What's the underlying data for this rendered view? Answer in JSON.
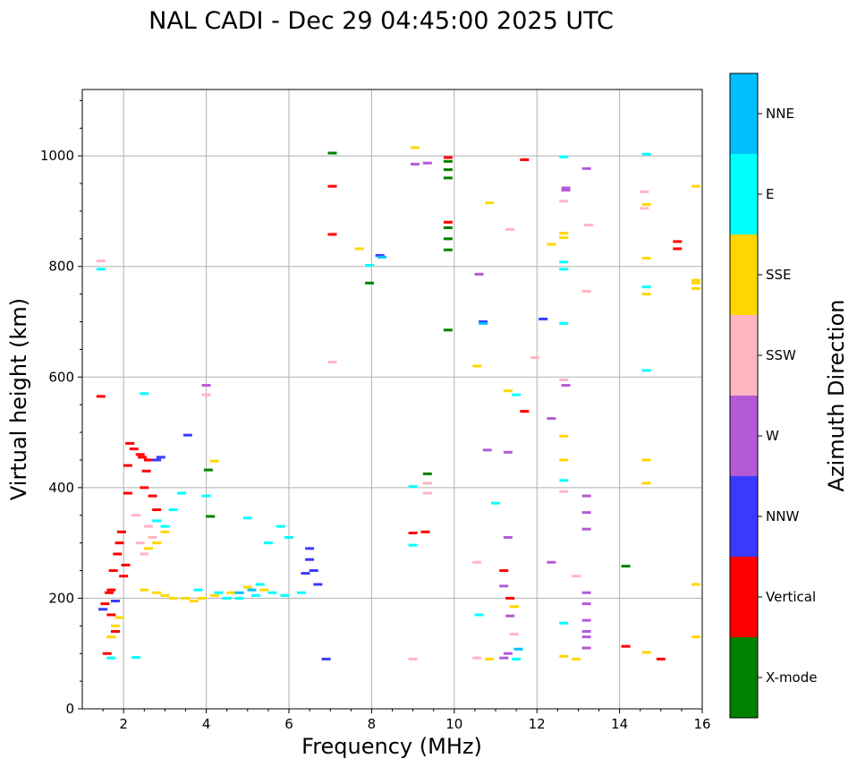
{
  "chart_data": {
    "type": "scatter",
    "title": "NAL CADI - Dec 29 04:45:00 2025 UTC",
    "xlabel": "Frequency (MHz)",
    "ylabel": "Virtual height (km)",
    "xlim": [
      1,
      16
    ],
    "ylim": [
      0,
      1120
    ],
    "xticks": [
      2,
      4,
      6,
      8,
      10,
      12,
      14,
      16
    ],
    "yticks": [
      0,
      200,
      400,
      600,
      800,
      1000
    ],
    "grid": true,
    "colorbar": {
      "label": "Azimuth Direction",
      "categories": [
        {
          "name": "X-mode",
          "color": "#008000"
        },
        {
          "name": "Vertical",
          "color": "#ff0000"
        },
        {
          "name": "NNW",
          "color": "#3a3aff"
        },
        {
          "name": "W",
          "color": "#b45ad6"
        },
        {
          "name": "SSW",
          "color": "#ffb6c1"
        },
        {
          "name": "SSE",
          "color": "#ffd700"
        },
        {
          "name": "E",
          "color": "#00ffff"
        },
        {
          "name": "NNE",
          "color": "#00bfff"
        }
      ]
    },
    "series": [
      {
        "name": "X-mode",
        "points": [
          [
            7.05,
            1005
          ],
          [
            9.35,
            425
          ],
          [
            4.05,
            432
          ],
          [
            4.1,
            348
          ],
          [
            7.95,
            770
          ],
          [
            9.85,
            685
          ],
          [
            14.15,
            258
          ],
          [
            9.85,
            990
          ],
          [
            9.85,
            975
          ],
          [
            9.85,
            960
          ],
          [
            9.85,
            870
          ],
          [
            9.85,
            850
          ],
          [
            9.85,
            830
          ]
        ]
      },
      {
        "name": "Vertical",
        "points": [
          [
            1.45,
            565
          ],
          [
            7.05,
            945
          ],
          [
            7.05,
            858
          ],
          [
            9.0,
            318
          ],
          [
            9.3,
            320
          ],
          [
            11.2,
            250
          ],
          [
            11.35,
            200
          ],
          [
            11.7,
            993
          ],
          [
            11.7,
            538
          ],
          [
            14.15,
            113
          ],
          [
            15.0,
            90
          ],
          [
            15.4,
            845
          ],
          [
            15.4,
            832
          ],
          [
            9.85,
            997
          ],
          [
            9.85,
            880
          ],
          [
            1.55,
            190
          ],
          [
            1.65,
            210
          ],
          [
            1.7,
            170
          ],
          [
            1.75,
            250
          ],
          [
            1.85,
            280
          ],
          [
            1.9,
            300
          ],
          [
            1.95,
            320
          ],
          [
            2.1,
            440
          ],
          [
            2.15,
            480
          ],
          [
            2.25,
            470
          ],
          [
            2.4,
            460
          ],
          [
            2.45,
            455
          ],
          [
            2.5,
            400
          ],
          [
            2.55,
            430
          ],
          [
            2.6,
            450
          ],
          [
            2.7,
            385
          ],
          [
            2.8,
            360
          ],
          [
            2.1,
            390
          ],
          [
            2.05,
            260
          ],
          [
            2.0,
            240
          ],
          [
            1.8,
            140
          ],
          [
            1.7,
            215
          ],
          [
            1.6,
            100
          ]
        ]
      },
      {
        "name": "NNW",
        "points": [
          [
            6.5,
            290
          ],
          [
            6.5,
            270
          ],
          [
            6.6,
            250
          ],
          [
            6.4,
            245
          ],
          [
            6.7,
            225
          ],
          [
            8.2,
            820
          ],
          [
            10.7,
            700
          ],
          [
            12.15,
            705
          ],
          [
            6.9,
            90
          ],
          [
            3.55,
            495
          ],
          [
            2.8,
            450
          ],
          [
            2.9,
            455
          ],
          [
            1.8,
            195
          ],
          [
            1.5,
            180
          ]
        ]
      },
      {
        "name": "W",
        "points": [
          [
            4.0,
            585
          ],
          [
            9.05,
            985
          ],
          [
            9.35,
            987
          ],
          [
            10.6,
            786
          ],
          [
            10.8,
            468
          ],
          [
            11.3,
            464
          ],
          [
            11.3,
            310
          ],
          [
            11.2,
            222
          ],
          [
            11.35,
            168
          ],
          [
            12.35,
            525
          ],
          [
            12.35,
            265
          ],
          [
            12.7,
            942
          ],
          [
            12.7,
            938
          ],
          [
            12.7,
            585
          ],
          [
            13.2,
            977
          ],
          [
            13.2,
            385
          ],
          [
            13.2,
            355
          ],
          [
            13.2,
            325
          ],
          [
            13.2,
            210
          ],
          [
            13.2,
            190
          ],
          [
            13.2,
            160
          ],
          [
            13.2,
            140
          ],
          [
            13.2,
            130
          ],
          [
            13.2,
            110
          ],
          [
            11.3,
            100
          ],
          [
            11.2,
            92
          ]
        ]
      },
      {
        "name": "SSW",
        "points": [
          [
            1.45,
            810
          ],
          [
            7.05,
            627
          ],
          [
            4.0,
            568
          ],
          [
            9.35,
            408
          ],
          [
            9.35,
            390
          ],
          [
            9.0,
            90
          ],
          [
            10.55,
            265
          ],
          [
            10.55,
            92
          ],
          [
            11.35,
            867
          ],
          [
            11.95,
            635
          ],
          [
            12.65,
            918
          ],
          [
            12.65,
            860
          ],
          [
            12.65,
            595
          ],
          [
            12.65,
            393
          ],
          [
            12.95,
            240
          ],
          [
            13.25,
            875
          ],
          [
            13.2,
            755
          ],
          [
            14.6,
            935
          ],
          [
            14.6,
            905
          ],
          [
            11.45,
            135
          ],
          [
            2.4,
            300
          ],
          [
            2.5,
            280
          ],
          [
            2.6,
            330
          ],
          [
            2.7,
            310
          ],
          [
            2.3,
            350
          ],
          [
            2.8,
            340
          ]
        ]
      },
      {
        "name": "SSE",
        "points": [
          [
            9.05,
            1015
          ],
          [
            7.7,
            832
          ],
          [
            10.55,
            620
          ],
          [
            10.85,
            915
          ],
          [
            11.3,
            575
          ],
          [
            11.45,
            185
          ],
          [
            10.85,
            90
          ],
          [
            12.35,
            840
          ],
          [
            12.65,
            860
          ],
          [
            12.65,
            852
          ],
          [
            12.65,
            493
          ],
          [
            12.65,
            450
          ],
          [
            12.65,
            95
          ],
          [
            12.95,
            90
          ],
          [
            14.65,
            912
          ],
          [
            14.65,
            815
          ],
          [
            14.65,
            750
          ],
          [
            14.65,
            450
          ],
          [
            14.65,
            408
          ],
          [
            14.65,
            102
          ],
          [
            15.85,
            945
          ],
          [
            15.85,
            775
          ],
          [
            15.85,
            770
          ],
          [
            15.85,
            760
          ],
          [
            15.85,
            225
          ],
          [
            15.85,
            130
          ],
          [
            4.2,
            448
          ],
          [
            2.5,
            215
          ],
          [
            2.8,
            210
          ],
          [
            3.0,
            205
          ],
          [
            3.2,
            200
          ],
          [
            3.5,
            200
          ],
          [
            3.7,
            195
          ],
          [
            3.9,
            200
          ],
          [
            4.2,
            205
          ],
          [
            4.6,
            210
          ],
          [
            5.0,
            220
          ],
          [
            5.4,
            215
          ],
          [
            1.7,
            130
          ],
          [
            1.8,
            150
          ],
          [
            1.9,
            165
          ],
          [
            2.6,
            290
          ],
          [
            2.8,
            300
          ],
          [
            3.0,
            320
          ]
        ]
      },
      {
        "name": "E",
        "points": [
          [
            1.45,
            795
          ],
          [
            4.0,
            385
          ],
          [
            4.3,
            210
          ],
          [
            4.8,
            200
          ],
          [
            5.2,
            205
          ],
          [
            5.6,
            210
          ],
          [
            5.9,
            205
          ],
          [
            6.3,
            210
          ],
          [
            5.3,
            225
          ],
          [
            4.5,
            200
          ],
          [
            3.8,
            215
          ],
          [
            5.0,
            345
          ],
          [
            5.5,
            300
          ],
          [
            6.0,
            310
          ],
          [
            5.8,
            330
          ],
          [
            7.95,
            802
          ],
          [
            9.0,
            402
          ],
          [
            9.0,
            296
          ],
          [
            10.6,
            170
          ],
          [
            11.0,
            372
          ],
          [
            11.5,
            568
          ],
          [
            11.5,
            90
          ],
          [
            12.65,
            998
          ],
          [
            12.65,
            808
          ],
          [
            12.65,
            795
          ],
          [
            12.65,
            697
          ],
          [
            12.65,
            413
          ],
          [
            12.65,
            155
          ],
          [
            14.65,
            1003
          ],
          [
            14.65,
            763
          ],
          [
            14.65,
            612
          ],
          [
            3.0,
            330
          ],
          [
            3.2,
            360
          ],
          [
            3.4,
            390
          ],
          [
            2.5,
            570
          ],
          [
            2.8,
            340
          ],
          [
            1.7,
            92
          ],
          [
            2.3,
            93
          ]
        ]
      },
      {
        "name": "NNE",
        "points": [
          [
            8.25,
            817
          ],
          [
            10.7,
            697
          ],
          [
            11.55,
            108
          ],
          [
            4.8,
            210
          ],
          [
            5.1,
            215
          ]
        ]
      }
    ]
  }
}
